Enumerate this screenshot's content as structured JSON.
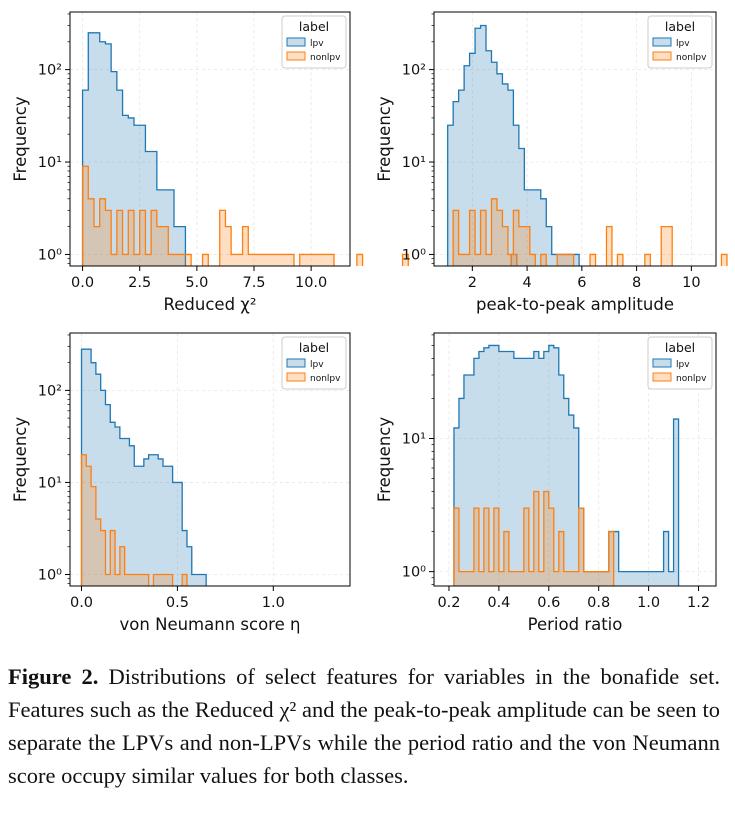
{
  "caption": {
    "label": "Figure 2.",
    "text": "Distributions of select features for variables in the bonafide set. Features such as the Reduced χ² and the peak-to-peak amplitude can be seen to separate the LPVs and non-LPVs while the period ratio and the von Neumann score occupy similar values for both classes."
  },
  "colors": {
    "lpv": "#1f77b4",
    "nonlpv": "#ff7f0e"
  },
  "chart_data": [
    {
      "type": "histogram",
      "xlabel": "Reduced χ²",
      "ylabel": "Frequency",
      "xlim": [
        -0.55,
        11.7
      ],
      "xticks": [
        0.0,
        2.5,
        5.0,
        7.5,
        10.0
      ],
      "xtick_labels": [
        "0.0",
        "2.5",
        "5.0",
        "7.5",
        "10.0"
      ],
      "ylog": true,
      "ylim": [
        0.75,
        420
      ],
      "yticks": [
        1,
        10,
        100
      ],
      "ytick_labels": [
        "10⁰",
        "10¹",
        "10²"
      ],
      "legend": {
        "title": "label",
        "position": "top-right",
        "entries": [
          "lpv",
          "nonlpv"
        ]
      },
      "series": [
        {
          "name": "lpv",
          "bin_start": 0.0,
          "bin_width": 0.25,
          "counts": [
            60,
            250,
            250,
            200,
            190,
            95,
            60,
            32,
            30,
            25,
            25,
            13,
            13,
            5,
            5,
            5,
            2,
            2
          ]
        },
        {
          "name": "nonlpv",
          "bin_start": 0.0,
          "bin_width": 0.25,
          "counts": [
            9,
            4,
            2,
            4,
            3,
            1,
            3,
            1,
            3,
            1,
            3,
            1,
            3,
            2,
            2,
            1,
            1,
            1,
            1,
            0,
            0,
            1,
            0,
            0,
            3,
            2,
            1,
            1,
            2,
            1,
            1,
            1,
            1,
            1,
            1,
            1,
            1,
            0,
            1,
            1,
            1,
            1,
            1,
            1,
            0,
            0,
            0,
            0,
            1,
            0,
            0,
            0,
            0,
            0,
            0,
            0,
            1,
            0,
            0,
            0,
            0,
            0,
            0,
            0,
            0,
            0,
            0,
            0,
            0,
            0,
            0,
            0,
            0,
            0,
            0,
            1
          ]
        }
      ]
    },
    {
      "type": "histogram",
      "xlabel": "peak-to-peak amplitude",
      "ylabel": "Frequency",
      "xlim": [
        0.6,
        10.9
      ],
      "xticks": [
        2,
        4,
        6,
        8,
        10
      ],
      "xtick_labels": [
        "2",
        "4",
        "6",
        "8",
        "10"
      ],
      "ylog": true,
      "ylim": [
        0.75,
        420
      ],
      "yticks": [
        1,
        10,
        100
      ],
      "ytick_labels": [
        "10⁰",
        "10¹",
        "10²"
      ],
      "legend": {
        "title": "label",
        "position": "top-right",
        "entries": [
          "lpv",
          "nonlpv"
        ]
      },
      "series": [
        {
          "name": "lpv",
          "bin_start": 1.1,
          "bin_width": 0.2,
          "counts": [
            25,
            45,
            60,
            110,
            150,
            280,
            300,
            160,
            120,
            90,
            70,
            60,
            25,
            14,
            5,
            5,
            5,
            4,
            2,
            1,
            1,
            1,
            1,
            1
          ]
        },
        {
          "name": "nonlpv",
          "bin_start": 1.1,
          "bin_width": 0.2,
          "counts": [
            0,
            3,
            1,
            1,
            3,
            1,
            3,
            1,
            4,
            3,
            2,
            1,
            3,
            2,
            2,
            1,
            0,
            1,
            0,
            0,
            1,
            1,
            1,
            0,
            0,
            0,
            1,
            0,
            0,
            2,
            0,
            1,
            0,
            0,
            0,
            0,
            1,
            0,
            0,
            2,
            2,
            0,
            0,
            0,
            0,
            0,
            0,
            0,
            0,
            0,
            1
          ]
        }
      ]
    },
    {
      "type": "histogram",
      "xlabel": "von Neumann score η",
      "ylabel": "Frequency",
      "xlim": [
        -0.06,
        1.4
      ],
      "xticks": [
        0.0,
        0.5,
        1.0
      ],
      "xtick_labels": [
        "0.0",
        "0.5",
        "1.0"
      ],
      "ylog": true,
      "ylim": [
        0.75,
        420
      ],
      "yticks": [
        1,
        10,
        100
      ],
      "ytick_labels": [
        "10⁰",
        "10¹",
        "10²"
      ],
      "legend": {
        "title": "label",
        "position": "top-right",
        "entries": [
          "lpv",
          "nonlpv"
        ]
      },
      "series": [
        {
          "name": "lpv",
          "bin_start": 0.0,
          "bin_width": 0.025,
          "counts": [
            280,
            280,
            200,
            150,
            100,
            70,
            45,
            40,
            30,
            30,
            25,
            15,
            15,
            18,
            20,
            20,
            18,
            15,
            15,
            10,
            10,
            3,
            2,
            1,
            1,
            1,
            0,
            0,
            0,
            0,
            0,
            0,
            0,
            0,
            0,
            0,
            0,
            0,
            0,
            0,
            0,
            0,
            0,
            0,
            0,
            0,
            0,
            0,
            0,
            0,
            0,
            0,
            0,
            0,
            0,
            0,
            0,
            0,
            0,
            0
          ]
        },
        {
          "name": "nonlpv",
          "bin_start": 0.0,
          "bin_width": 0.025,
          "counts": [
            20,
            15,
            9,
            4,
            3,
            1,
            3,
            1,
            2,
            1,
            1,
            1,
            1,
            1,
            0,
            1,
            1,
            1,
            1,
            0,
            0,
            1,
            0,
            0,
            0,
            0,
            0,
            0,
            0,
            0,
            0,
            0,
            0,
            0,
            0,
            0,
            0,
            0,
            0,
            0,
            0,
            0,
            0,
            0,
            0,
            0,
            0,
            0,
            0,
            0,
            0,
            0,
            0,
            0,
            0,
            0,
            0,
            0,
            0,
            0
          ]
        }
      ]
    },
    {
      "type": "histogram",
      "xlabel": "Period ratio",
      "ylabel": "Frequency",
      "xlim": [
        0.14,
        1.27
      ],
      "xticks": [
        0.2,
        0.4,
        0.6,
        0.8,
        1.0,
        1.2
      ],
      "xtick_labels": [
        "0.2",
        "0.4",
        "0.6",
        "0.8",
        "1.0",
        "1.2"
      ],
      "ylog": true,
      "ylim": [
        0.78,
        62
      ],
      "yticks": [
        1,
        10
      ],
      "ytick_labels": [
        "10⁰",
        "10¹"
      ],
      "legend": {
        "title": "label",
        "position": "top-right",
        "entries": [
          "lpv",
          "nonlpv"
        ]
      },
      "series": [
        {
          "name": "lpv",
          "bin_start": 0.22,
          "bin_width": 0.02,
          "counts": [
            12,
            20,
            30,
            30,
            40,
            45,
            48,
            50,
            50,
            45,
            45,
            45,
            40,
            40,
            40,
            40,
            45,
            40,
            45,
            50,
            48,
            30,
            20,
            15,
            12,
            3,
            1,
            1,
            1,
            1,
            1,
            2,
            2,
            1,
            1,
            1,
            1,
            1,
            1,
            1,
            1,
            1,
            2,
            1,
            14
          ]
        },
        {
          "name": "nonlpv",
          "bin_start": 0.22,
          "bin_width": 0.02,
          "counts": [
            3,
            1,
            1,
            1,
            3,
            1,
            3,
            1,
            3,
            1,
            2,
            1,
            1,
            1,
            3,
            1,
            4,
            1,
            4,
            3,
            1,
            2,
            1,
            1,
            1,
            3,
            1,
            1,
            1,
            1,
            1,
            2,
            0,
            0,
            0,
            0,
            0,
            0,
            0,
            0,
            0,
            0,
            0,
            0,
            0
          ]
        }
      ]
    }
  ]
}
